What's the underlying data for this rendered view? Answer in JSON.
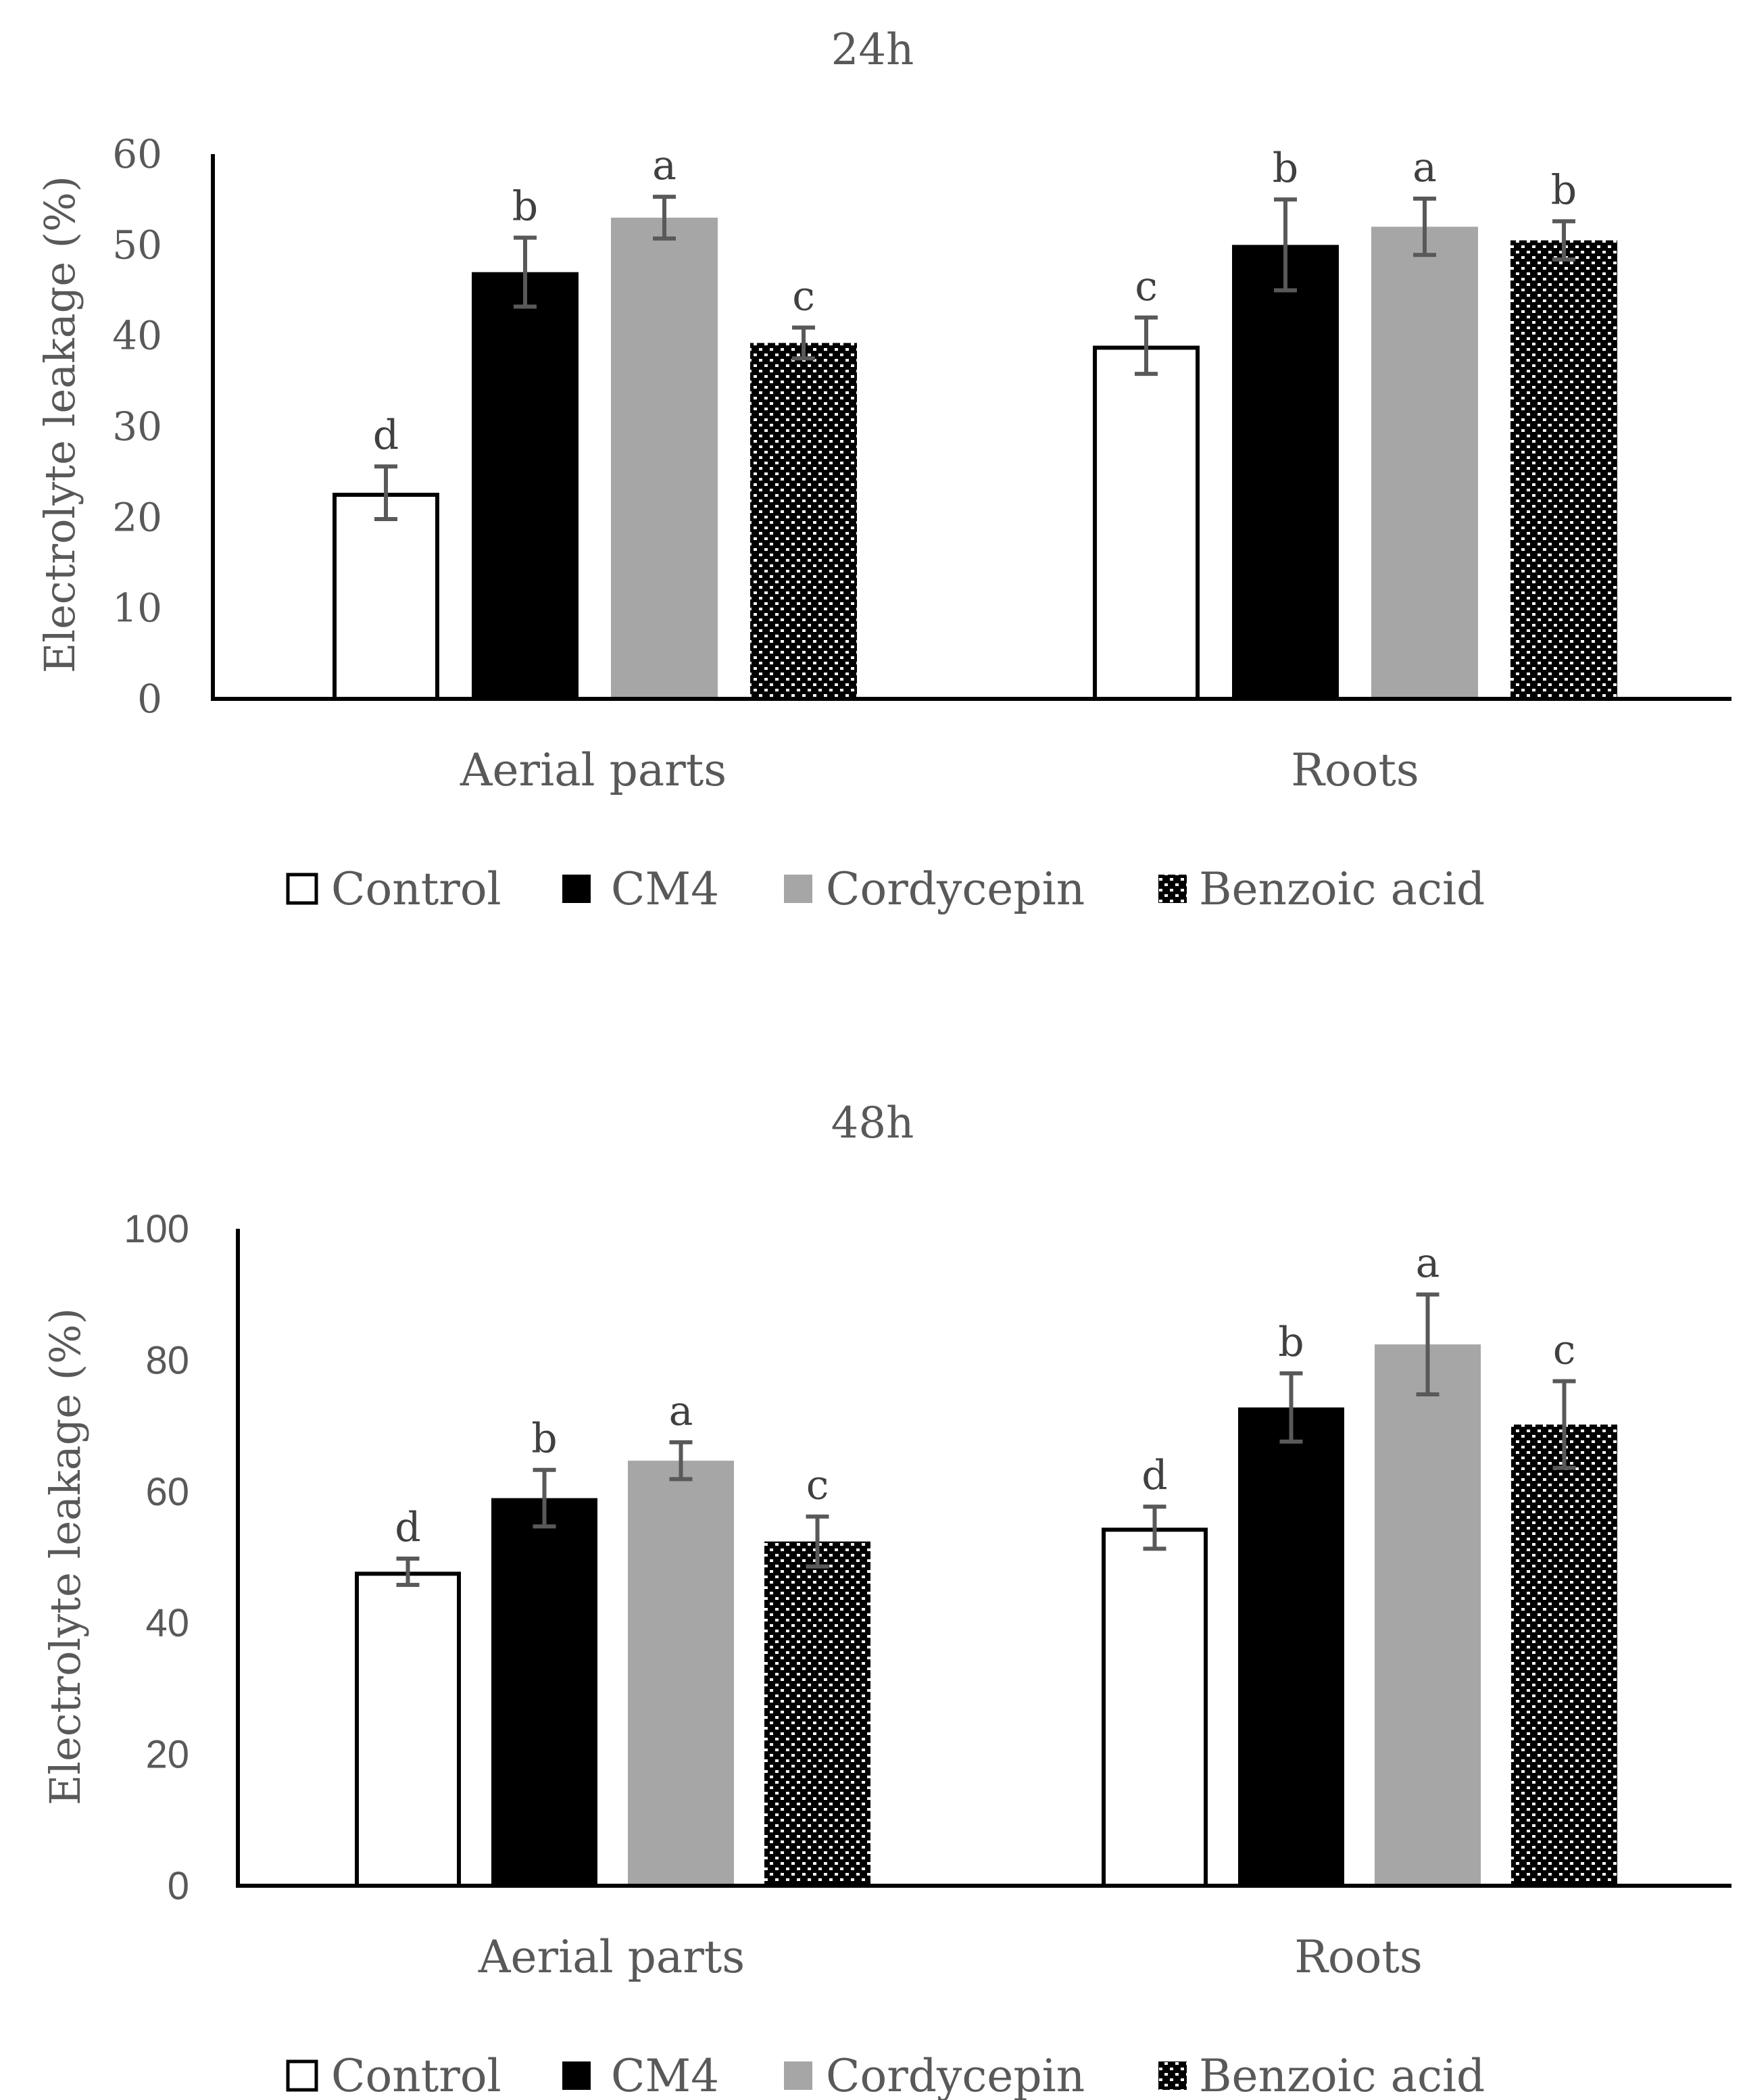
{
  "chart_data": [
    {
      "type": "bar",
      "title": "24h",
      "ylabel": "Electrolyte leakage (%)",
      "xlabel": "",
      "ylim": [
        0,
        60
      ],
      "yticks": [
        0,
        10,
        20,
        30,
        40,
        50,
        60
      ],
      "categories": [
        "Aerial parts",
        "Roots"
      ],
      "legend_position": "bottom",
      "series": [
        {
          "name": "Control",
          "fill": "white",
          "values": [
            22.7,
            38.9
          ],
          "errors": [
            2.9,
            3.1
          ],
          "letters": [
            "d",
            "c"
          ]
        },
        {
          "name": "CM4",
          "fill": "black",
          "values": [
            47.0,
            50.0
          ],
          "errors": [
            3.8,
            5.0
          ],
          "letters": [
            "b",
            "b"
          ]
        },
        {
          "name": "Cordycepin",
          "fill": "gray",
          "values": [
            53.0,
            52.0
          ],
          "errors": [
            2.3,
            3.1
          ],
          "letters": [
            "a",
            "a"
          ]
        },
        {
          "name": "Benzoic acid",
          "fill": "pattern",
          "values": [
            39.2,
            50.5
          ],
          "errors": [
            1.7,
            2.1
          ],
          "letters": [
            "c",
            "b"
          ]
        }
      ]
    },
    {
      "type": "bar",
      "title": "48h",
      "ylabel": "Electrolyte leakage (%)",
      "xlabel": "",
      "ylim": [
        0,
        100
      ],
      "yticks": [
        0,
        20,
        40,
        60,
        80,
        100
      ],
      "categories": [
        "Aerial parts",
        "Roots"
      ],
      "legend_position": "bottom",
      "series": [
        {
          "name": "Control",
          "fill": "white",
          "values": [
            47.8,
            54.5
          ],
          "errors": [
            2.0,
            3.2
          ],
          "letters": [
            "d",
            "d"
          ]
        },
        {
          "name": "CM4",
          "fill": "black",
          "values": [
            59.0,
            72.8
          ],
          "errors": [
            4.3,
            5.2
          ],
          "letters": [
            "b",
            "b"
          ]
        },
        {
          "name": "Cordycepin",
          "fill": "gray",
          "values": [
            64.7,
            82.4
          ],
          "errors": [
            2.8,
            7.6
          ],
          "letters": [
            "a",
            "a"
          ]
        },
        {
          "name": "Benzoic acid",
          "fill": "pattern",
          "values": [
            52.4,
            70.2
          ],
          "errors": [
            3.8,
            6.6
          ],
          "letters": [
            "c",
            "c"
          ]
        }
      ]
    }
  ],
  "colors": {
    "axis": "#000000",
    "text": "#595959",
    "control_fill": "#ffffff",
    "cm4_fill": "#000000",
    "cordycepin_fill": "#a6a6a6",
    "error_bar": "#595959"
  }
}
